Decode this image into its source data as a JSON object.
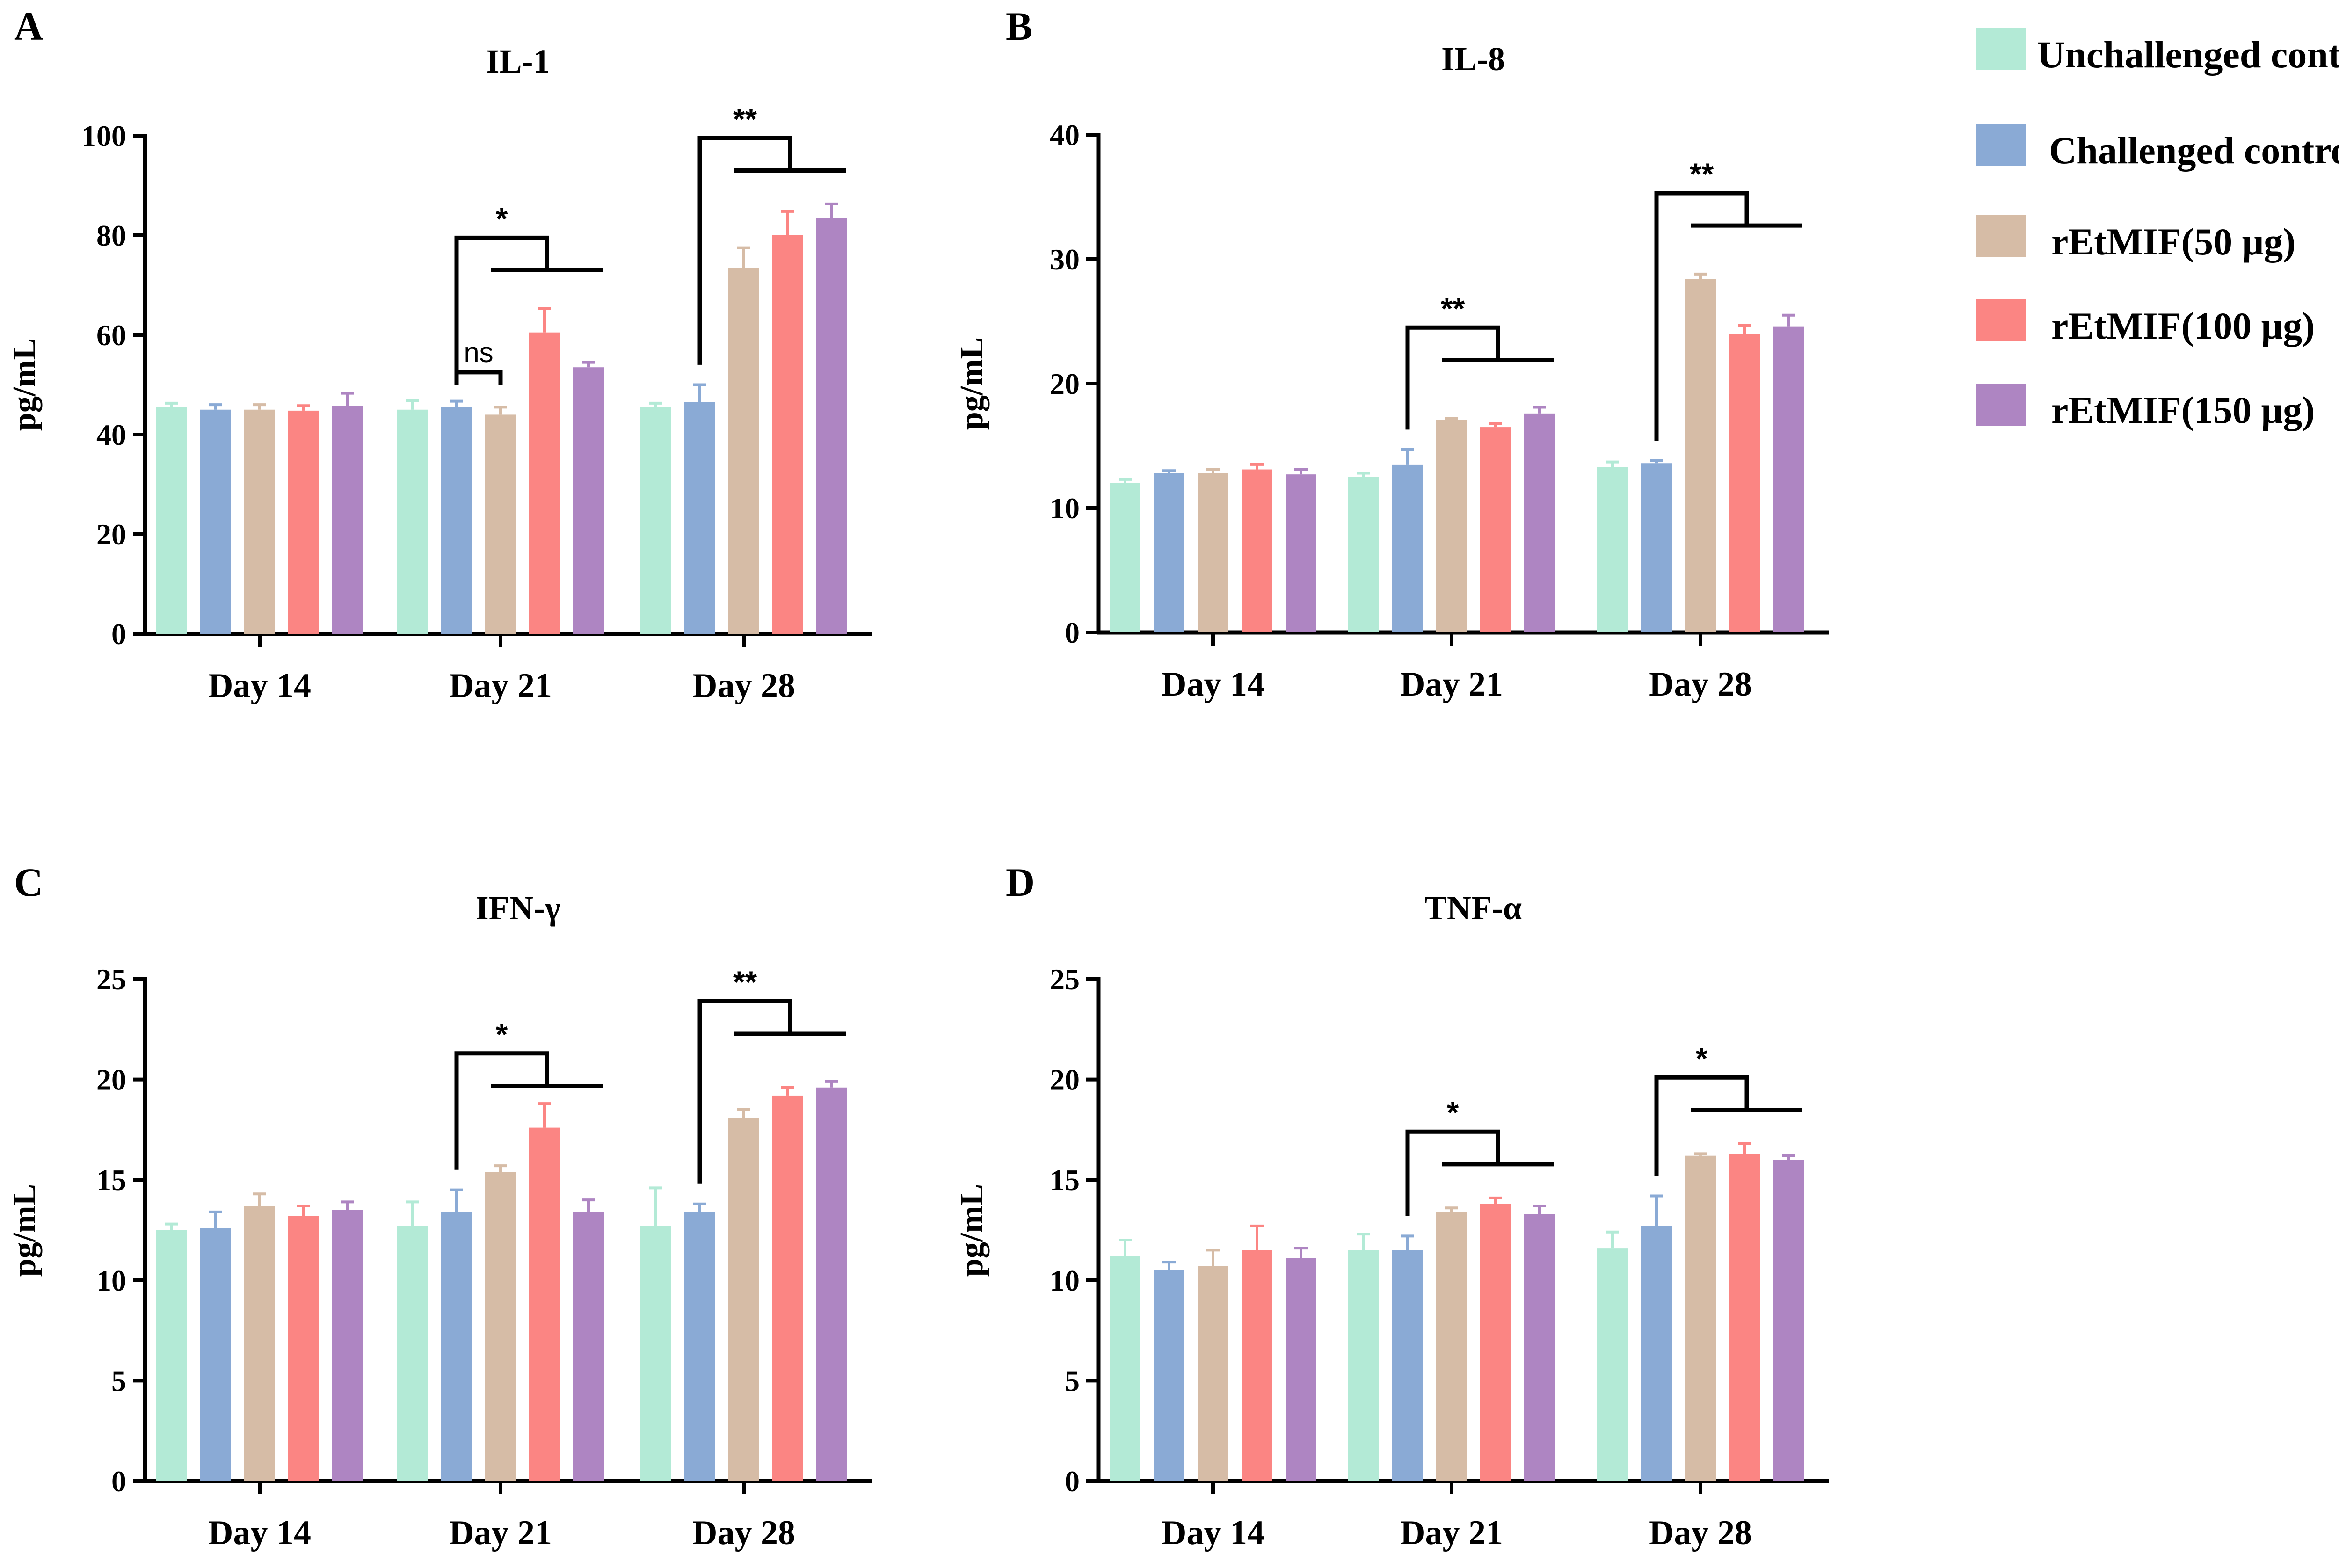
{
  "series_colors": [
    "#b3ead6",
    "#8aaad5",
    "#d6bca6",
    "#fb8583",
    "#ae85c2"
  ],
  "legend": [
    "Unchallenged control",
    "Challenged control",
    "rEtMIF(50 μg)",
    "rEtMIF(100 μg)",
    "rEtMIF(150 μg)"
  ],
  "chart_data": [
    {
      "type": "bar",
      "panel": "A",
      "title": "IL-1",
      "ylabel": "pg/mL",
      "xlabel": "",
      "ylim": [
        0,
        100
      ],
      "yticks": [
        0,
        20,
        40,
        60,
        80,
        100
      ],
      "categories": [
        "Day 14",
        "Day 21",
        "Day 28"
      ],
      "series": [
        {
          "name": "Unchallenged control",
          "values": [
            45.5,
            45.0,
            45.5
          ],
          "errors": [
            0.8,
            1.8,
            0.8
          ]
        },
        {
          "name": "Challenged control",
          "values": [
            45.0,
            45.5,
            46.5
          ],
          "errors": [
            1.0,
            1.2,
            3.5
          ]
        },
        {
          "name": "rEtMIF(50 μg)",
          "values": [
            45.0,
            44.0,
            73.5
          ],
          "errors": [
            1.0,
            1.5,
            4.0
          ]
        },
        {
          "name": "rEtMIF(100 μg)",
          "values": [
            44.8,
            60.5,
            80.0
          ],
          "errors": [
            1.0,
            4.8,
            4.8
          ]
        },
        {
          "name": "rEtMIF(150 μg)",
          "values": [
            45.8,
            53.5,
            83.5
          ],
          "errors": [
            2.5,
            1.0,
            2.8
          ]
        }
      ],
      "annotations": [
        {
          "label": "ns",
          "category": "Day 21",
          "from": 1,
          "to": 2,
          "y": 52.5,
          "type": "simple"
        },
        {
          "label": "*",
          "category": "Day 21",
          "from": 1,
          "to": 4,
          "y": 79.5,
          "type": "fork"
        },
        {
          "label": "**",
          "category": "Day 28",
          "from": 1,
          "to": 4,
          "y": 99.5,
          "type": "fork"
        }
      ]
    },
    {
      "type": "bar",
      "panel": "B",
      "title": "IL-8",
      "ylabel": "pg/mL",
      "xlabel": "",
      "ylim": [
        0,
        40
      ],
      "yticks": [
        0,
        10,
        20,
        30,
        40
      ],
      "categories": [
        "Day 14",
        "Day 21",
        "Day 28"
      ],
      "series": [
        {
          "name": "Unchallenged control",
          "values": [
            12.0,
            12.5,
            13.3
          ],
          "errors": [
            0.3,
            0.3,
            0.4
          ]
        },
        {
          "name": "Challenged control",
          "values": [
            12.8,
            13.5,
            13.6
          ],
          "errors": [
            0.2,
            1.2,
            0.2
          ]
        },
        {
          "name": "rEtMIF(50 μg)",
          "values": [
            12.8,
            17.1,
            28.4
          ],
          "errors": [
            0.3,
            0.1,
            0.4
          ]
        },
        {
          "name": "rEtMIF(100 μg)",
          "values": [
            13.1,
            16.5,
            24.0
          ],
          "errors": [
            0.4,
            0.3,
            0.7
          ]
        },
        {
          "name": "rEtMIF(150 μg)",
          "values": [
            12.7,
            17.6,
            24.6
          ],
          "errors": [
            0.4,
            0.5,
            0.9
          ]
        }
      ],
      "annotations": [
        {
          "label": "**",
          "category": "Day 21",
          "from": 1,
          "to": 4,
          "y": 24.5,
          "type": "fork"
        },
        {
          "label": "**",
          "category": "Day 28",
          "from": 1,
          "to": 4,
          "y": 35.3,
          "type": "fork"
        }
      ]
    },
    {
      "type": "bar",
      "panel": "C",
      "title": "IFN-γ",
      "ylabel": "pg/mL",
      "xlabel": "",
      "ylim": [
        0,
        25
      ],
      "yticks": [
        0,
        5,
        10,
        15,
        20,
        25
      ],
      "categories": [
        "Day 14",
        "Day 21",
        "Day 28"
      ],
      "series": [
        {
          "name": "Unchallenged control",
          "values": [
            12.5,
            12.7,
            12.7
          ],
          "errors": [
            0.3,
            1.2,
            1.9
          ]
        },
        {
          "name": "Challenged control",
          "values": [
            12.6,
            13.4,
            13.4
          ],
          "errors": [
            0.8,
            1.1,
            0.4
          ]
        },
        {
          "name": "rEtMIF(50 μg)",
          "values": [
            13.7,
            15.4,
            18.1
          ],
          "errors": [
            0.6,
            0.3,
            0.4
          ]
        },
        {
          "name": "rEtMIF(100 μg)",
          "values": [
            13.2,
            17.6,
            19.2
          ],
          "errors": [
            0.5,
            1.2,
            0.4
          ]
        },
        {
          "name": "rEtMIF(150 μg)",
          "values": [
            13.5,
            13.4,
            19.6
          ],
          "errors": [
            0.4,
            0.6,
            0.3
          ]
        }
      ],
      "annotations": [
        {
          "label": "*",
          "category": "Day 21",
          "from": 1,
          "to": 4,
          "y": 21.3,
          "type": "fork"
        },
        {
          "label": "**",
          "category": "Day 28",
          "from": 1,
          "to": 4,
          "y": 23.9,
          "type": "fork"
        }
      ]
    },
    {
      "type": "bar",
      "panel": "D",
      "title": "TNF-α",
      "ylabel": "pg/mL",
      "xlabel": "",
      "ylim": [
        0,
        25
      ],
      "yticks": [
        0,
        5,
        10,
        15,
        20,
        25
      ],
      "categories": [
        "Day 14",
        "Day 21",
        "Day 28"
      ],
      "series": [
        {
          "name": "Unchallenged control",
          "values": [
            11.2,
            11.5,
            11.6
          ],
          "errors": [
            0.8,
            0.8,
            0.8
          ]
        },
        {
          "name": "Challenged control",
          "values": [
            10.5,
            11.5,
            12.7
          ],
          "errors": [
            0.4,
            0.7,
            1.5
          ]
        },
        {
          "name": "rEtMIF(50 μg)",
          "values": [
            10.7,
            13.4,
            16.2
          ],
          "errors": [
            0.8,
            0.2,
            0.1
          ]
        },
        {
          "name": "rEtMIF(100 μg)",
          "values": [
            11.5,
            13.8,
            16.3
          ],
          "errors": [
            1.2,
            0.3,
            0.5
          ]
        },
        {
          "name": "rEtMIF(150 μg)",
          "values": [
            11.1,
            13.3,
            16.0
          ],
          "errors": [
            0.5,
            0.4,
            0.2
          ]
        }
      ],
      "annotations": [
        {
          "label": "*",
          "category": "Day 21",
          "from": 1,
          "to": 4,
          "y": 17.4,
          "type": "fork"
        },
        {
          "label": "*",
          "category": "Day 28",
          "from": 1,
          "to": 4,
          "y": 20.1,
          "type": "fork"
        }
      ]
    }
  ]
}
